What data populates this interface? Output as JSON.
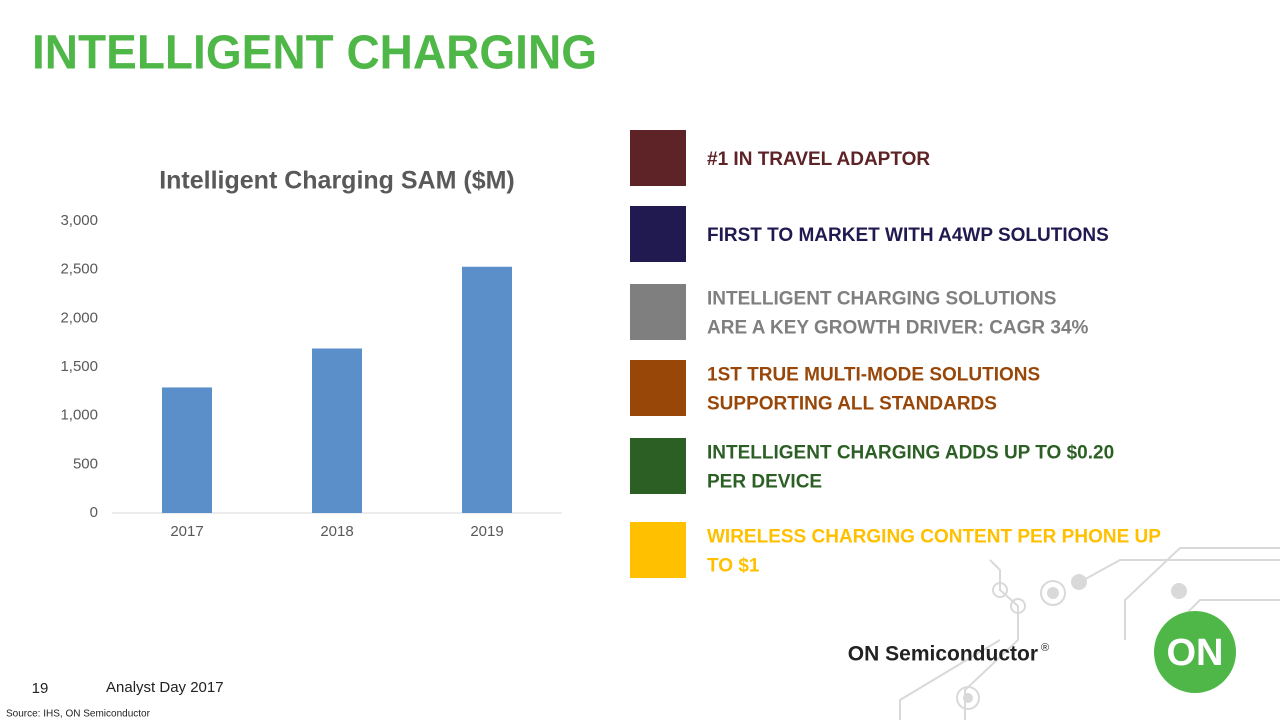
{
  "title": "INTELLIGENT CHARGING",
  "chart_data": {
    "type": "bar",
    "title": "Intelligent Charging SAM ($M)",
    "categories": [
      "2017",
      "2018",
      "2019"
    ],
    "values": [
      1290,
      1690,
      2530
    ],
    "color": "#5b8fc9",
    "ylim": [
      0,
      3000
    ],
    "yticks": [
      0,
      500,
      {
        "value": 1000,
        "label": "1,000"
      },
      {
        "value": 1500,
        "label": "1,500"
      },
      {
        "value": 2000,
        "label": "2,000"
      },
      {
        "value": 2500,
        "label": "2,500"
      },
      {
        "value": 3000,
        "label": "3,000"
      }
    ],
    "grid": false
  },
  "bullets": [
    {
      "lines": [
        "#1 IN  TRAVEL ADAPTOR"
      ],
      "color": "#5e2327",
      "text_color": "#5e2327"
    },
    {
      "lines": [
        "FIRST TO MARKET WITH A4WP SOLUTIONS"
      ],
      "color": "#201a50",
      "text_color": "#201a50"
    },
    {
      "lines": [
        "INTELLIGENT CHARGING SOLUTIONS",
        "ARE A KEY GROWTH DRIVER: CAGR 34%"
      ],
      "color": "#7f7f7f",
      "text_color": "#7f7f7f"
    },
    {
      "lines": [
        "1ST TRUE MULTI-MODE SOLUTIONS",
        "SUPPORTING ALL STANDARDS"
      ],
      "color": "#984709",
      "text_color": "#984709"
    },
    {
      "lines": [
        "INTELLIGENT CHARGING ADDS UP TO $0.20",
        "PER DEVICE"
      ],
      "color": "#2b5f24",
      "text_color": "#2b5f24"
    },
    {
      "lines": [
        "WIRELESS CHARGING CONTENT PER PHONE UP",
        "TO $1"
      ],
      "color": "#ffc000",
      "text_color": "#ffc000"
    }
  ],
  "logo": {
    "company": "ON Semiconductor",
    "mark": "®",
    "badge": "ON"
  },
  "footer": {
    "page": "19",
    "event": "Analyst Day 2017",
    "source": "Source: IHS, ON Semiconductor"
  }
}
